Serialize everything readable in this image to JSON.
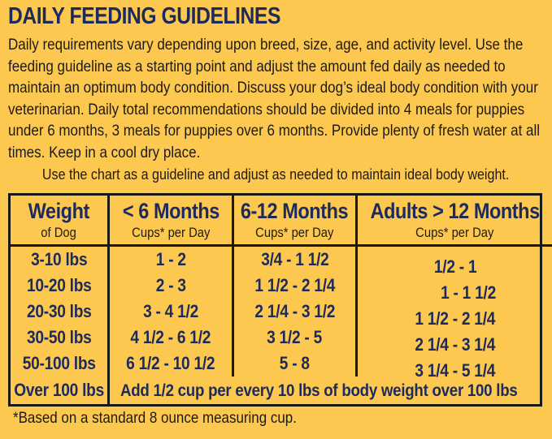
{
  "page": {
    "title": "DAILY FEEDING GUIDELINES",
    "intro": "Daily requirements vary depending upon breed, size, age, and activity level. Use the feeding guideline as a starting point and adjust the amount fed daily as needed to maintain an optimum body condition. Discuss your dog’s ideal body condition with your veterinarian. Daily total recommendations should be divided into 4 meals for puppies under 6 months, 3 meals for puppies over 6 months. Provide plenty of fresh water at all times. Keep in a cool dry place.",
    "chart_note": "Use the chart as a guideline and adjust as needed to maintain ideal body weight.",
    "footnote": "*Based on a standard 8 ounce measuring cup."
  },
  "table": {
    "headers": [
      {
        "title": "Weight",
        "subtitle": "of Dog"
      },
      {
        "title": "< 6 Months",
        "subtitle": "Cups* per Day"
      },
      {
        "title": "6-12 Months",
        "subtitle": "Cups* per Day"
      },
      {
        "title": "Adults > 12 Months",
        "subtitle": "Cups* per Day"
      }
    ],
    "rows": [
      {
        "weight": "3-10 lbs",
        "under6": "1 - 2",
        "m6to12": "3/4 - 1 1/2",
        "adults": "1/2 - 1"
      },
      {
        "weight": "10-20 lbs",
        "under6": "2 - 3",
        "m6to12": "1 1/2 - 2 1/4",
        "adults": "1 - 1 1/2"
      },
      {
        "weight": "20-30 lbs",
        "under6": "3 - 4 1/2",
        "m6to12": "2 1/4 - 3 1/2",
        "adults": "1 1/2 - 2 1/4"
      },
      {
        "weight": "30-50 lbs",
        "under6": "4 1/2 - 6 1/2",
        "m6to12": "3 1/2 - 5",
        "adults": "2 1/4 - 3 1/4"
      },
      {
        "weight": "50-100 lbs",
        "under6": "6 1/2 - 10 1/2",
        "m6to12": "5 - 8",
        "adults": "3 1/4 - 5 1/4"
      }
    ],
    "over_row": {
      "weight": "Over 100 lbs",
      "note": "Add 1/2 cup per every 10 lbs of body weight over 100 lbs"
    }
  },
  "colors": {
    "background": "#FCC84F",
    "navy": "#1D2A5C",
    "ink": "#1E1B16",
    "table_border": "#191914"
  }
}
